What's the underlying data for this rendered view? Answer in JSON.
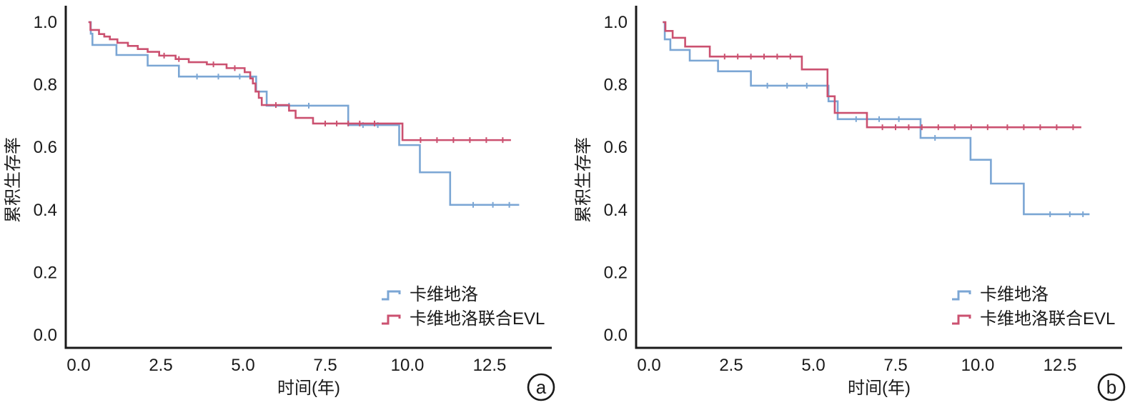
{
  "colors": {
    "carvedilol": "#7BA6D4",
    "combo": "#CB5170",
    "axis": "#1a1a1a",
    "text": "#1a1a1a"
  },
  "legend": {
    "items": [
      {
        "label": "卡维地洛",
        "color_key": "carvedilol"
      },
      {
        "label": "卡维地洛联合EVL",
        "color_key": "combo"
      }
    ]
  },
  "chart_data": [
    {
      "type": "line",
      "subtype": "kaplan-meier-step",
      "panel_label": "a",
      "title": "",
      "xlabel": "时间(年)",
      "ylabel": "累积生存率",
      "xlim": [
        -0.4,
        14.4
      ],
      "ylim": [
        0,
        1.04
      ],
      "grid": false,
      "legend_position": "lower right",
      "xticks": [
        0,
        2.5,
        5,
        7.5,
        10,
        12.5
      ],
      "xtick_labels": [
        "0.0",
        "2.5",
        "5.0",
        "7.5",
        "10.0",
        "12.5"
      ],
      "yticks": [
        0,
        0.2,
        0.4,
        0.6,
        0.8,
        1.0
      ],
      "ytick_labels": [
        "0.0",
        "0.2",
        "0.4",
        "0.6",
        "0.8",
        "1.0"
      ],
      "series": [
        {
          "name": "卡维地洛",
          "color_key": "carvedilol",
          "end": 13.4,
          "steps": [
            [
              0.3,
              1.0
            ],
            [
              0.37,
              0.963
            ],
            [
              0.42,
              0.927
            ],
            [
              1.15,
              0.895
            ],
            [
              2.1,
              0.861
            ],
            [
              3.05,
              0.826
            ],
            [
              5.4,
              0.778
            ],
            [
              5.72,
              0.733
            ],
            [
              8.2,
              0.671
            ],
            [
              9.75,
              0.607
            ],
            [
              10.38,
              0.52
            ],
            [
              11.3,
              0.416
            ]
          ],
          "censors": [
            [
              3.6,
              0.826
            ],
            [
              4.25,
              0.826
            ],
            [
              4.9,
              0.826
            ],
            [
              6.4,
              0.733
            ],
            [
              7.0,
              0.733
            ],
            [
              8.65,
              0.671
            ],
            [
              9.1,
              0.671
            ],
            [
              12.0,
              0.416
            ],
            [
              12.6,
              0.416
            ],
            [
              13.1,
              0.416
            ]
          ]
        },
        {
          "name": "卡维地洛联合EVL",
          "color_key": "combo",
          "end": 13.15,
          "steps": [
            [
              0.3,
              1.0
            ],
            [
              0.36,
              0.975
            ],
            [
              0.62,
              0.962
            ],
            [
              0.78,
              0.954
            ],
            [
              0.95,
              0.945
            ],
            [
              1.18,
              0.934
            ],
            [
              1.5,
              0.924
            ],
            [
              1.8,
              0.914
            ],
            [
              2.1,
              0.905
            ],
            [
              2.45,
              0.893
            ],
            [
              2.95,
              0.882
            ],
            [
              3.35,
              0.872
            ],
            [
              3.9,
              0.865
            ],
            [
              4.5,
              0.853
            ],
            [
              5.05,
              0.84
            ],
            [
              5.22,
              0.82
            ],
            [
              5.3,
              0.804
            ],
            [
              5.38,
              0.778
            ],
            [
              5.48,
              0.758
            ],
            [
              5.57,
              0.735
            ],
            [
              6.4,
              0.717
            ],
            [
              6.6,
              0.694
            ],
            [
              7.13,
              0.676
            ],
            [
              9.85,
              0.623
            ]
          ],
          "censors": [
            [
              2.6,
              0.893
            ],
            [
              3.05,
              0.882
            ],
            [
              4.1,
              0.865
            ],
            [
              4.75,
              0.853
            ],
            [
              6.0,
              0.735
            ],
            [
              7.5,
              0.676
            ],
            [
              7.85,
              0.676
            ],
            [
              8.2,
              0.676
            ],
            [
              8.55,
              0.676
            ],
            [
              9.0,
              0.676
            ],
            [
              10.4,
              0.623
            ],
            [
              10.9,
              0.623
            ],
            [
              11.4,
              0.623
            ],
            [
              11.9,
              0.623
            ],
            [
              12.4,
              0.623
            ],
            [
              12.9,
              0.623
            ]
          ]
        }
      ]
    },
    {
      "type": "line",
      "subtype": "kaplan-meier-step",
      "panel_label": "b",
      "title": "",
      "xlabel": "时间(年)",
      "ylabel": "累积生存率",
      "xlim": [
        -0.4,
        14.4
      ],
      "ylim": [
        0,
        1.04
      ],
      "grid": false,
      "legend_position": "lower right",
      "xticks": [
        0,
        2.5,
        5,
        7.5,
        10,
        12.5
      ],
      "xtick_labels": [
        "0.0",
        "2.5",
        "5.0",
        "7.5",
        "10.0",
        "12.5"
      ],
      "yticks": [
        0,
        0.2,
        0.4,
        0.6,
        0.8,
        1.0
      ],
      "ytick_labels": [
        "0.0",
        "0.2",
        "0.4",
        "0.6",
        "0.8",
        "1.0"
      ],
      "series": [
        {
          "name": "卡维地洛",
          "color_key": "carvedilol",
          "end": 13.4,
          "steps": [
            [
              0.42,
              1.0
            ],
            [
              0.48,
              0.945
            ],
            [
              0.65,
              0.911
            ],
            [
              1.24,
              0.877
            ],
            [
              2.1,
              0.843
            ],
            [
              3.1,
              0.797
            ],
            [
              5.46,
              0.747
            ],
            [
              5.74,
              0.69
            ],
            [
              8.26,
              0.63
            ],
            [
              9.78,
              0.56
            ],
            [
              10.4,
              0.484
            ],
            [
              11.4,
              0.386
            ]
          ],
          "censors": [
            [
              3.6,
              0.797
            ],
            [
              4.2,
              0.797
            ],
            [
              4.8,
              0.797
            ],
            [
              6.3,
              0.69
            ],
            [
              7.0,
              0.69
            ],
            [
              7.6,
              0.69
            ],
            [
              8.7,
              0.63
            ],
            [
              12.2,
              0.386
            ],
            [
              12.8,
              0.386
            ],
            [
              13.2,
              0.386
            ]
          ]
        },
        {
          "name": "卡维地洛联合EVL",
          "color_key": "combo",
          "end": 13.15,
          "steps": [
            [
              0.42,
              1.0
            ],
            [
              0.5,
              0.972
            ],
            [
              0.72,
              0.95
            ],
            [
              1.1,
              0.922
            ],
            [
              1.85,
              0.89
            ],
            [
              4.65,
              0.849
            ],
            [
              5.43,
              0.763
            ],
            [
              5.65,
              0.71
            ],
            [
              6.63,
              0.664
            ]
          ],
          "censors": [
            [
              2.3,
              0.89
            ],
            [
              2.7,
              0.89
            ],
            [
              3.1,
              0.89
            ],
            [
              3.5,
              0.89
            ],
            [
              3.9,
              0.89
            ],
            [
              4.3,
              0.89
            ],
            [
              7.1,
              0.664
            ],
            [
              7.5,
              0.664
            ],
            [
              7.9,
              0.664
            ],
            [
              8.3,
              0.664
            ],
            [
              8.8,
              0.664
            ],
            [
              9.3,
              0.664
            ],
            [
              9.8,
              0.664
            ],
            [
              10.3,
              0.664
            ],
            [
              10.9,
              0.664
            ],
            [
              11.4,
              0.664
            ],
            [
              11.9,
              0.664
            ],
            [
              12.4,
              0.664
            ],
            [
              12.9,
              0.664
            ]
          ]
        }
      ]
    }
  ]
}
